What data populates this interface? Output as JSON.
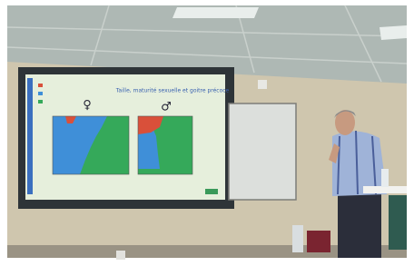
{
  "slide": {
    "title": "Taille, maturité sexuelle et goitre précoce",
    "female_symbol": "♀",
    "male_symbol": "♂"
  }
}
